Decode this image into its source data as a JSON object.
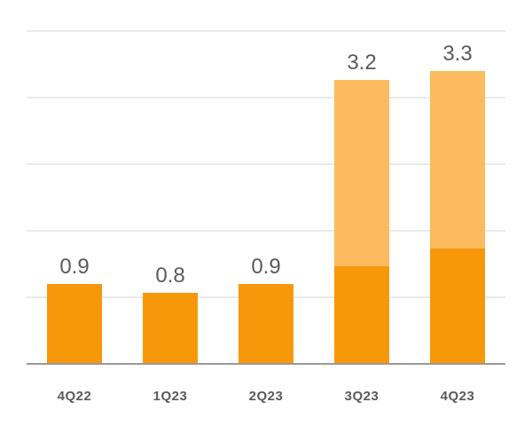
{
  "chart_data": {
    "type": "stacked-bar",
    "categories": [
      "4Q22",
      "1Q23",
      "2Q23",
      "3Q23",
      "4Q23"
    ],
    "series": [
      {
        "color": "#f7980a",
        "values": [
          0.9,
          0.8,
          0.9,
          1.1,
          1.3
        ]
      },
      {
        "color": "#fbbb5e",
        "values": [
          null,
          null,
          null,
          2.1,
          2.0
        ]
      }
    ],
    "totals": [
      0.9,
      0.8,
      0.9,
      3.2,
      3.3
    ],
    "ylim": [
      0,
      3.8
    ],
    "yticks": [
      0.75,
      1.5,
      2.25,
      3.0,
      3.75
    ],
    "grid": true
  }
}
